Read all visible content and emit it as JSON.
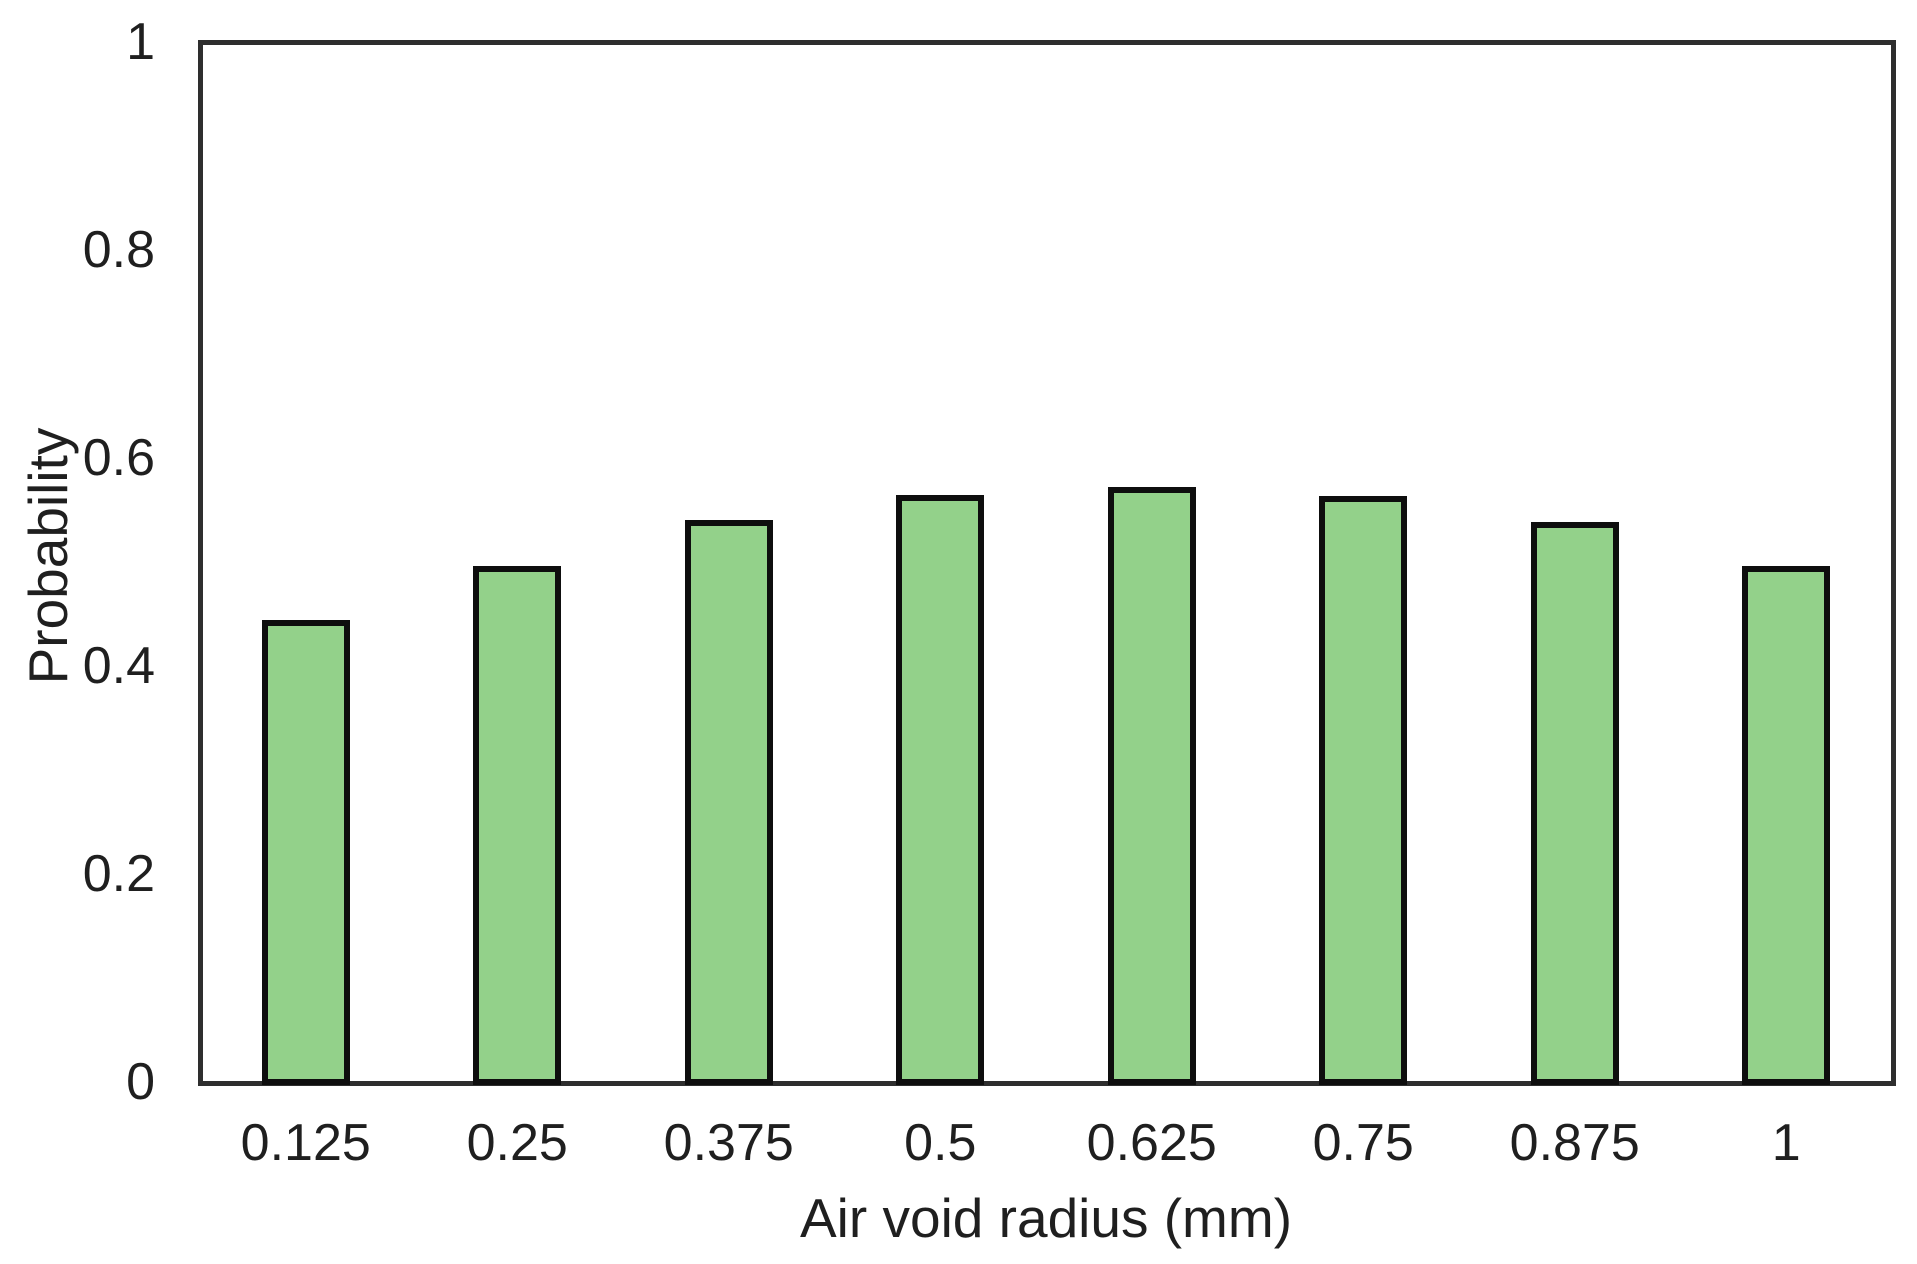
{
  "chart_data": {
    "type": "bar",
    "title": "",
    "xlabel": "Air void radius (mm)",
    "ylabel": "Probability",
    "categories": [
      "0.125",
      "0.25",
      "0.375",
      "0.5",
      "0.625",
      "0.75",
      "0.875",
      "1"
    ],
    "values": [
      0.444,
      0.496,
      0.54,
      0.564,
      0.572,
      0.563,
      0.538,
      0.496
    ],
    "ylim": [
      0,
      1
    ],
    "yticks": [
      {
        "label": "0",
        "value": 0
      },
      {
        "label": "0.2",
        "value": 0.2
      },
      {
        "label": "0.4",
        "value": 0.4
      },
      {
        "label": "0.6",
        "value": 0.6
      },
      {
        "label": "0.8",
        "value": 0.8
      },
      {
        "label": "1",
        "value": 1
      }
    ],
    "grid": false,
    "legend_position": "none",
    "colors": {
      "bar_fill": "#93d18a",
      "bar_border": "#0e0e0e",
      "axis_frame": "#2e2e2e",
      "text": "#1f1f1f",
      "background": "#ffffff"
    }
  }
}
